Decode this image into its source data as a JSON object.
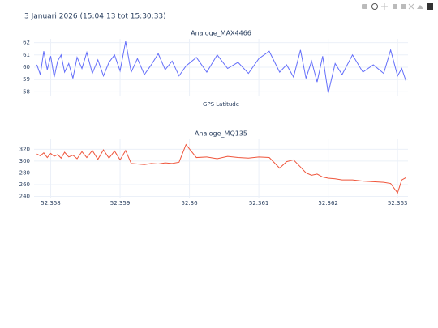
{
  "title": "3 Januari 2026 (15:04:13 tot 15:30:33)",
  "chart_data": [
    {
      "type": "line",
      "title": "Analoge_MAX4466",
      "x_label": "GPS Latitude",
      "color": "#636efa",
      "xlim": [
        52.35776,
        52.36315
      ],
      "ylim": [
        57.7,
        62.3
      ],
      "yticks": [
        58,
        59,
        60,
        61,
        62
      ],
      "grid": true,
      "x": [
        52.3578,
        52.35785,
        52.3579,
        52.35795,
        52.358,
        52.35805,
        52.3581,
        52.35815,
        52.3582,
        52.35826,
        52.35832,
        52.35838,
        52.35845,
        52.35852,
        52.3586,
        52.35868,
        52.35876,
        52.35884,
        52.35892,
        52.359,
        52.35908,
        52.35916,
        52.35925,
        52.35935,
        52.35945,
        52.35955,
        52.35965,
        52.35975,
        52.35985,
        52.35995,
        52.3601,
        52.36025,
        52.3604,
        52.36055,
        52.3607,
        52.36085,
        52.361,
        52.36115,
        52.3613,
        52.3614,
        52.3615,
        52.3616,
        52.36168,
        52.36176,
        52.36184,
        52.36192,
        52.362,
        52.3621,
        52.3622,
        52.36235,
        52.3625,
        52.36265,
        52.3628,
        52.3629,
        52.363,
        52.36306,
        52.36312
      ],
      "values": [
        60.2,
        59.4,
        61.3,
        59.8,
        60.9,
        59.2,
        60.5,
        61.0,
        59.6,
        60.3,
        59.1,
        60.8,
        59.9,
        61.2,
        59.5,
        60.6,
        59.3,
        60.4,
        61.0,
        59.7,
        62.1,
        59.6,
        60.7,
        59.4,
        60.2,
        61.1,
        59.8,
        60.5,
        59.3,
        60.1,
        60.8,
        59.6,
        61.0,
        59.9,
        60.4,
        59.5,
        60.7,
        61.3,
        59.6,
        60.2,
        59.2,
        61.4,
        59.1,
        60.5,
        58.8,
        60.9,
        57.9,
        60.3,
        59.4,
        61.0,
        59.6,
        60.2,
        59.5,
        61.4,
        59.3,
        59.9,
        58.9
      ]
    },
    {
      "type": "line",
      "title": "Analoge_MQ135",
      "color": "#ef553b",
      "xlim": [
        52.35776,
        52.36315
      ],
      "xticks": [
        52.358,
        52.359,
        52.36,
        52.361,
        52.362,
        52.363
      ],
      "ylim": [
        238,
        337
      ],
      "yticks": [
        240,
        260,
        280,
        300,
        320
      ],
      "grid": true,
      "x": [
        52.3578,
        52.35785,
        52.3579,
        52.35795,
        52.358,
        52.35805,
        52.3581,
        52.35815,
        52.3582,
        52.35826,
        52.35832,
        52.35838,
        52.35845,
        52.35852,
        52.3586,
        52.35868,
        52.35876,
        52.35884,
        52.35892,
        52.359,
        52.35908,
        52.35916,
        52.35925,
        52.35935,
        52.35945,
        52.35955,
        52.35965,
        52.35975,
        52.35985,
        52.35995,
        52.3601,
        52.36025,
        52.3604,
        52.36055,
        52.3607,
        52.36085,
        52.361,
        52.36115,
        52.3613,
        52.3614,
        52.3615,
        52.3616,
        52.36168,
        52.36176,
        52.36184,
        52.36192,
        52.362,
        52.3621,
        52.3622,
        52.36235,
        52.3625,
        52.36265,
        52.3628,
        52.3629,
        52.363,
        52.36306,
        52.36312
      ],
      "values": [
        312,
        309,
        314,
        306,
        313,
        308,
        311,
        305,
        315,
        307,
        310,
        304,
        316,
        306,
        318,
        303,
        319,
        305,
        317,
        302,
        318,
        296,
        295,
        294,
        296,
        295,
        297,
        296,
        298,
        328,
        306,
        307,
        304,
        308,
        306,
        305,
        307,
        306,
        288,
        299,
        302,
        290,
        280,
        276,
        278,
        273,
        271,
        270,
        268,
        268,
        266,
        265,
        264,
        262,
        246,
        268,
        272
      ]
    }
  ]
}
